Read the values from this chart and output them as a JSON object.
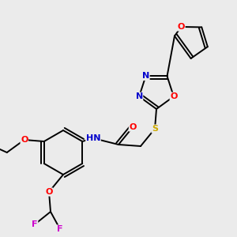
{
  "background_color": "#ebebeb",
  "colors": {
    "C": "#000000",
    "N": "#0000cc",
    "O": "#ff0000",
    "S": "#ccaa00",
    "F": "#cc00cc",
    "bond": "#000000"
  },
  "layout": {
    "xlim": [
      0,
      300
    ],
    "ylim": [
      0,
      300
    ]
  }
}
